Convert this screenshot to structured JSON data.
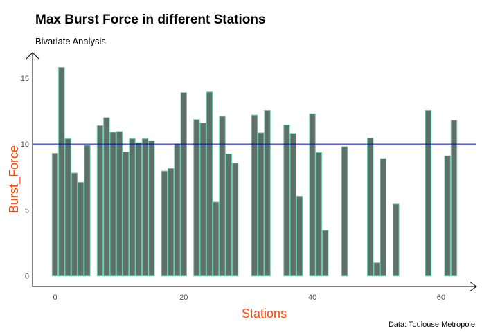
{
  "chart_data": {
    "type": "bar",
    "title": "Max Burst Force in different Stations",
    "subtitle": "Bivariate Analysis",
    "caption": "Data: Toulouse Metropole",
    "xlabel": "Stations",
    "ylabel": "Burst_Force",
    "xlim": [
      -3.5,
      65.5
    ],
    "ylim": [
      -0.8,
      16.3
    ],
    "x_ticks": [
      0,
      20,
      40,
      60
    ],
    "y_ticks": [
      0,
      5,
      10,
      15
    ],
    "reference_line": {
      "y": 10,
      "color": "#0000cd"
    },
    "bar_fill": "#5f6f6a",
    "bar_outline": "#66cdaa",
    "x": [
      0,
      1,
      2,
      3,
      4,
      5,
      7,
      8,
      9,
      10,
      11,
      12,
      13,
      14,
      15,
      17,
      18,
      19,
      20,
      22,
      23,
      24,
      25,
      26,
      27,
      28,
      31,
      32,
      33,
      36,
      37,
      38,
      40,
      41,
      42,
      45,
      49,
      50,
      51,
      53,
      58,
      61,
      62
    ],
    "values": [
      9.3,
      15.8,
      10.4,
      7.8,
      7.1,
      9.9,
      11.4,
      12.0,
      10.9,
      10.95,
      9.4,
      10.4,
      10.1,
      10.4,
      10.25,
      7.95,
      8.15,
      10.0,
      13.9,
      11.85,
      11.6,
      13.95,
      5.6,
      12.1,
      9.25,
      8.55,
      12.2,
      10.85,
      12.55,
      11.45,
      10.8,
      6.05,
      12.3,
      9.35,
      3.45,
      9.8,
      10.45,
      1.0,
      8.9,
      5.45,
      12.55,
      9.1,
      11.8
    ]
  }
}
